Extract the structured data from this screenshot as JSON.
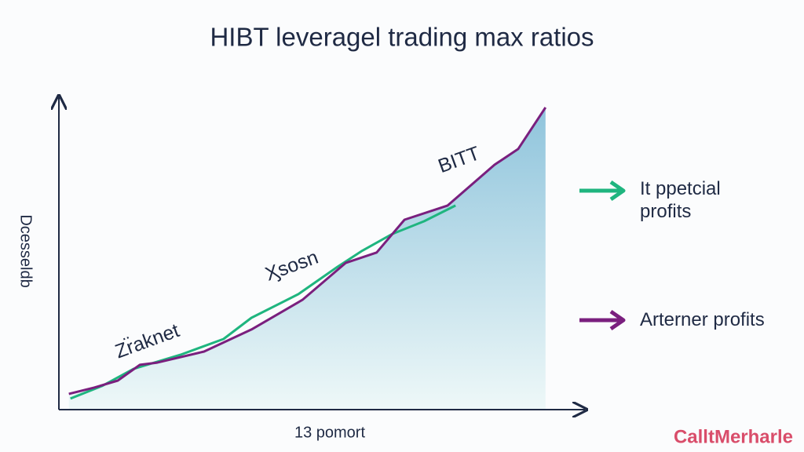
{
  "chart_data": {
    "type": "line",
    "title": "HIBT leveragel trading max ratios",
    "xlabel": "13 pomort",
    "ylabel": "Dcesseldb",
    "xlim": [
      0,
      100
    ],
    "ylim": [
      0,
      100
    ],
    "grid": false,
    "legend": "right",
    "annotations": [
      "Zr̈aknet",
      "Ӽsosn",
      "BITT"
    ],
    "watermark": "CalltMerharle",
    "series": [
      {
        "name": "It ppetcial profits",
        "color": "#1fb57f",
        "x": [
          2.2,
          8.2,
          14.2,
          23.1,
          31.3,
          36.6,
          45.5,
          53.0,
          57.5,
          63.4,
          69.4,
          75.4
        ],
        "values": [
          3.5,
          7.5,
          12.9,
          17.4,
          22.4,
          29.1,
          36.6,
          45.3,
          50.2,
          55.7,
          59.7,
          64.7
        ]
      },
      {
        "name": "Arterner profits",
        "color": "#7a1f7e",
        "area_color": "#a9d3e2",
        "x": [
          1.9,
          6.7,
          11.2,
          15.4,
          18.7,
          27.6,
          36.6,
          46.3,
          54.5,
          60.4,
          65.7,
          73.9,
          82.8,
          87.3,
          92.5
        ],
        "values": [
          5.0,
          7.0,
          9.2,
          14.2,
          14.9,
          18.4,
          25.4,
          34.8,
          46.5,
          49.8,
          60.2,
          64.7,
          77.6,
          82.6,
          95.8
        ]
      }
    ]
  }
}
